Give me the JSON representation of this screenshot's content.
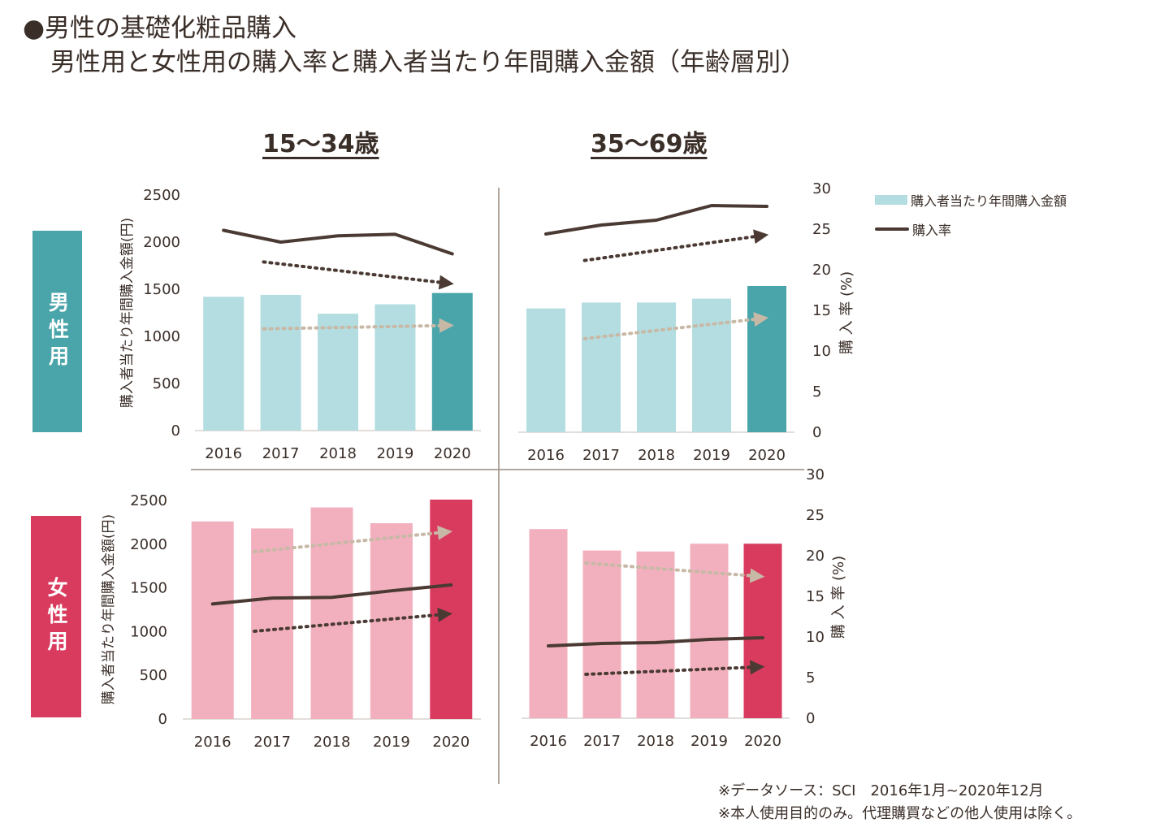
{
  "title": {
    "line1": "●男性の基礎化粧品購入",
    "line2": "男性用と女性用の購入率と購入者当たり年間購入金額（年齢層別）"
  },
  "age_groups": [
    "15～34歳",
    "35～69歳"
  ],
  "sex_labels": {
    "male": "男性用",
    "female": "女性用"
  },
  "axis_labels": {
    "left": "購入者当たり年間購入金額(円)",
    "right": "購 入 率 (%)"
  },
  "legend": {
    "bar": "購入者当たり年間購入金額",
    "line": "購入率"
  },
  "footer": {
    "line1": "※データソース：SCI　2016年1月~2020年12月",
    "line2": "※本人使用目的のみ。代理購買などの他人使用は除く。"
  },
  "colors": {
    "male_bar": "#b3dde0",
    "male_bar_highlight": "#4aa5aa",
    "female_bar": "#f2b0be",
    "female_bar_highlight": "#d93b5e",
    "rate_line": "#4a3a33",
    "amount_trend_arrow": "#c8b8a6",
    "rate_trend_arrow": "#4a3a33",
    "male_label_bg": "#4aa5aa",
    "female_label_bg": "#d93b5e"
  },
  "chart_data": [
    {
      "type": "bar",
      "panel": "male-15-34",
      "categories": [
        "2016",
        "2017",
        "2018",
        "2019",
        "2020"
      ],
      "series": [
        {
          "values": [
            1420,
            1440,
            1240,
            1340,
            1460
          ]
        },
        {
          "values": [
            25.5,
            24.0,
            24.8,
            25.0,
            22.5
          ]
        }
      ],
      "ylim_left": [
        0,
        2500
      ],
      "ylim_right": [
        0,
        30
      ],
      "yticks_left": [
        0,
        500,
        1000,
        1500,
        2000,
        2500
      ]
    },
    {
      "type": "bar",
      "panel": "male-35-69",
      "categories": [
        "2016",
        "2017",
        "2018",
        "2019",
        "2020"
      ],
      "series": [
        {
          "values": [
            1270,
            1330,
            1330,
            1370,
            1500
          ]
        },
        {
          "values": [
            24.4,
            25.5,
            26.1,
            27.9,
            27.8
          ]
        }
      ],
      "ylim_left": [
        0,
        2500
      ],
      "ylim_right": [
        0,
        30
      ],
      "yticks_right": [
        0,
        5,
        10,
        15,
        20,
        25,
        30
      ]
    },
    {
      "type": "bar",
      "panel": "female-15-34",
      "categories": [
        "2016",
        "2017",
        "2018",
        "2019",
        "2020"
      ],
      "series": [
        {
          "values": [
            2260,
            2180,
            2420,
            2240,
            2510
          ]
        },
        {
          "values": [
            15.8,
            16.6,
            16.7,
            17.6,
            18.4
          ]
        }
      ],
      "ylim_left": [
        0,
        2500
      ],
      "ylim_right": [
        0,
        30
      ],
      "yticks_left": [
        0,
        500,
        1000,
        1500,
        2000,
        2500
      ]
    },
    {
      "type": "bar",
      "panel": "female-35-69",
      "categories": [
        "2016",
        "2017",
        "2018",
        "2019",
        "2020"
      ],
      "series": [
        {
          "values": [
            1940,
            1720,
            1710,
            1790,
            1790
          ]
        },
        {
          "values": [
            8.9,
            9.2,
            9.3,
            9.7,
            9.9
          ]
        }
      ],
      "ylim_left": [
        0,
        2500
      ],
      "ylim_right": [
        0,
        30
      ],
      "yticks_right": [
        0,
        5,
        10,
        15,
        20,
        25,
        30
      ]
    }
  ]
}
